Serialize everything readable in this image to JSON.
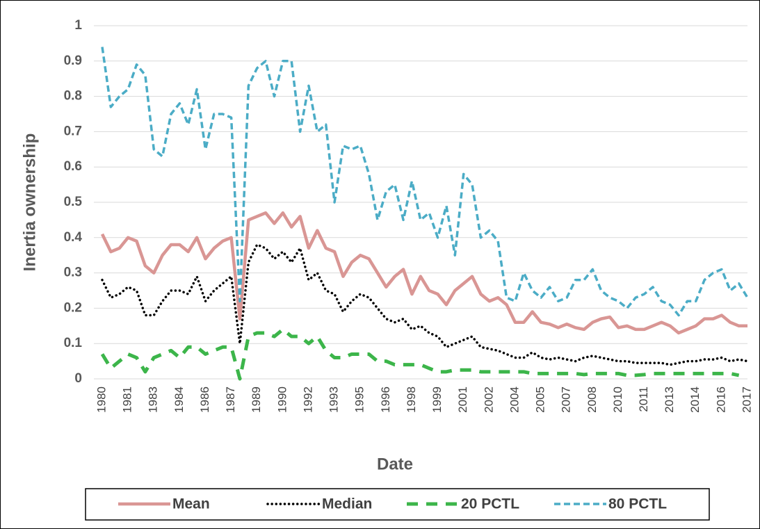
{
  "chart_data": {
    "type": "line",
    "x_label": "Date",
    "y_label": "Inertia ownership",
    "categories": [
      "1980",
      null,
      null,
      "1981",
      null,
      null,
      "1983",
      null,
      null,
      "1984",
      null,
      null,
      "1986",
      null,
      null,
      "1987",
      null,
      null,
      "1989",
      null,
      null,
      "1990",
      null,
      null,
      "1992",
      null,
      null,
      "1993",
      null,
      null,
      "1995",
      null,
      null,
      "1996",
      null,
      null,
      "1998",
      null,
      null,
      "1999",
      null,
      null,
      "2001",
      null,
      null,
      "2002",
      null,
      null,
      "2004",
      null,
      null,
      "2005",
      null,
      null,
      "2007",
      null,
      null,
      "2008",
      null,
      null,
      "2010",
      null,
      null,
      "2011",
      null,
      null,
      "2013",
      null,
      null,
      "2014",
      null,
      null,
      "2016",
      null,
      null,
      "2017"
    ],
    "series": [
      {
        "name": "Mean",
        "color": "#d99694",
        "values": [
          0.41,
          0.36,
          0.37,
          0.4,
          0.39,
          0.32,
          0.3,
          0.35,
          0.38,
          0.38,
          0.36,
          0.4,
          0.34,
          0.37,
          0.39,
          0.4,
          0.17,
          0.45,
          0.46,
          0.47,
          0.44,
          0.47,
          0.43,
          0.46,
          0.37,
          0.42,
          0.37,
          0.36,
          0.29,
          0.33,
          0.35,
          0.34,
          0.3,
          0.26,
          0.29,
          0.31,
          0.24,
          0.29,
          0.25,
          0.24,
          0.21,
          0.25,
          0.27,
          0.29,
          0.24,
          0.22,
          0.23,
          0.21,
          0.16,
          0.16,
          0.19,
          0.16,
          0.155,
          0.145,
          0.155,
          0.145,
          0.14,
          0.16,
          0.17,
          0.175,
          0.145,
          0.15,
          0.14,
          0.14,
          0.15,
          0.16,
          0.15,
          0.13,
          0.14,
          0.15,
          0.17,
          0.17,
          0.18,
          0.16,
          0.15,
          0.15
        ]
      },
      {
        "name": "Median",
        "color": "#000000",
        "values": [
          0.28,
          0.23,
          0.24,
          0.26,
          0.25,
          0.18,
          0.18,
          0.22,
          0.25,
          0.25,
          0.24,
          0.29,
          0.22,
          0.25,
          0.27,
          0.29,
          0.1,
          0.33,
          0.38,
          0.37,
          0.34,
          0.36,
          0.33,
          0.37,
          0.28,
          0.3,
          0.25,
          0.24,
          0.19,
          0.22,
          0.24,
          0.23,
          0.2,
          0.17,
          0.16,
          0.17,
          0.14,
          0.15,
          0.13,
          0.12,
          0.09,
          0.1,
          0.11,
          0.12,
          0.09,
          0.085,
          0.08,
          0.07,
          0.06,
          0.06,
          0.075,
          0.06,
          0.055,
          0.06,
          0.055,
          0.05,
          0.06,
          0.065,
          0.06,
          0.055,
          0.05,
          0.05,
          0.045,
          0.045,
          0.045,
          0.045,
          0.04,
          0.045,
          0.05,
          0.05,
          0.055,
          0.055,
          0.06,
          0.05,
          0.055,
          0.05
        ]
      },
      {
        "name": "20 PCTL",
        "color": "#3cb54a",
        "values": [
          0.07,
          0.03,
          0.05,
          0.07,
          0.06,
          0.02,
          0.06,
          0.07,
          0.08,
          0.06,
          0.09,
          0.09,
          0.07,
          0.08,
          0.09,
          0.09,
          0.0,
          0.12,
          0.13,
          0.13,
          0.12,
          0.14,
          0.12,
          0.12,
          0.1,
          0.12,
          0.08,
          0.06,
          0.06,
          0.07,
          0.07,
          0.07,
          0.05,
          0.05,
          0.04,
          0.04,
          0.04,
          0.04,
          0.03,
          0.02,
          0.02,
          0.025,
          0.025,
          0.025,
          0.02,
          0.02,
          0.02,
          0.02,
          0.02,
          0.02,
          0.015,
          0.015,
          0.015,
          0.015,
          0.015,
          0.015,
          0.012,
          0.015,
          0.015,
          0.015,
          0.015,
          0.01,
          0.01,
          0.012,
          0.015,
          0.015,
          0.015,
          0.015,
          0.015,
          0.015,
          0.015,
          0.015,
          0.015,
          0.015,
          0.01,
          null
        ]
      },
      {
        "name": "80 PCTL",
        "color": "#4bacc6",
        "values": [
          0.94,
          0.77,
          0.8,
          0.82,
          0.89,
          0.86,
          0.65,
          0.63,
          0.75,
          0.78,
          0.72,
          0.82,
          0.65,
          0.75,
          0.75,
          0.74,
          0.22,
          0.83,
          0.88,
          0.9,
          0.8,
          0.9,
          0.9,
          0.7,
          0.83,
          0.7,
          0.72,
          0.5,
          0.66,
          0.65,
          0.66,
          0.58,
          0.45,
          0.53,
          0.55,
          0.45,
          0.56,
          0.45,
          0.47,
          0.4,
          0.49,
          0.35,
          0.58,
          0.55,
          0.4,
          0.42,
          0.39,
          0.23,
          0.22,
          0.3,
          0.25,
          0.23,
          0.26,
          0.22,
          0.23,
          0.28,
          0.28,
          0.31,
          0.25,
          0.23,
          0.22,
          0.2,
          0.23,
          0.24,
          0.26,
          0.22,
          0.21,
          0.18,
          0.22,
          0.22,
          0.28,
          0.3,
          0.31,
          0.25,
          0.27,
          0.23
        ]
      }
    ],
    "ylim": [
      0,
      1
    ],
    "yticks": [
      0,
      0.1,
      0.2,
      0.3,
      0.4,
      0.5,
      0.6,
      0.7,
      0.8,
      0.9,
      1
    ],
    "grid": true,
    "legend": "bottom"
  }
}
